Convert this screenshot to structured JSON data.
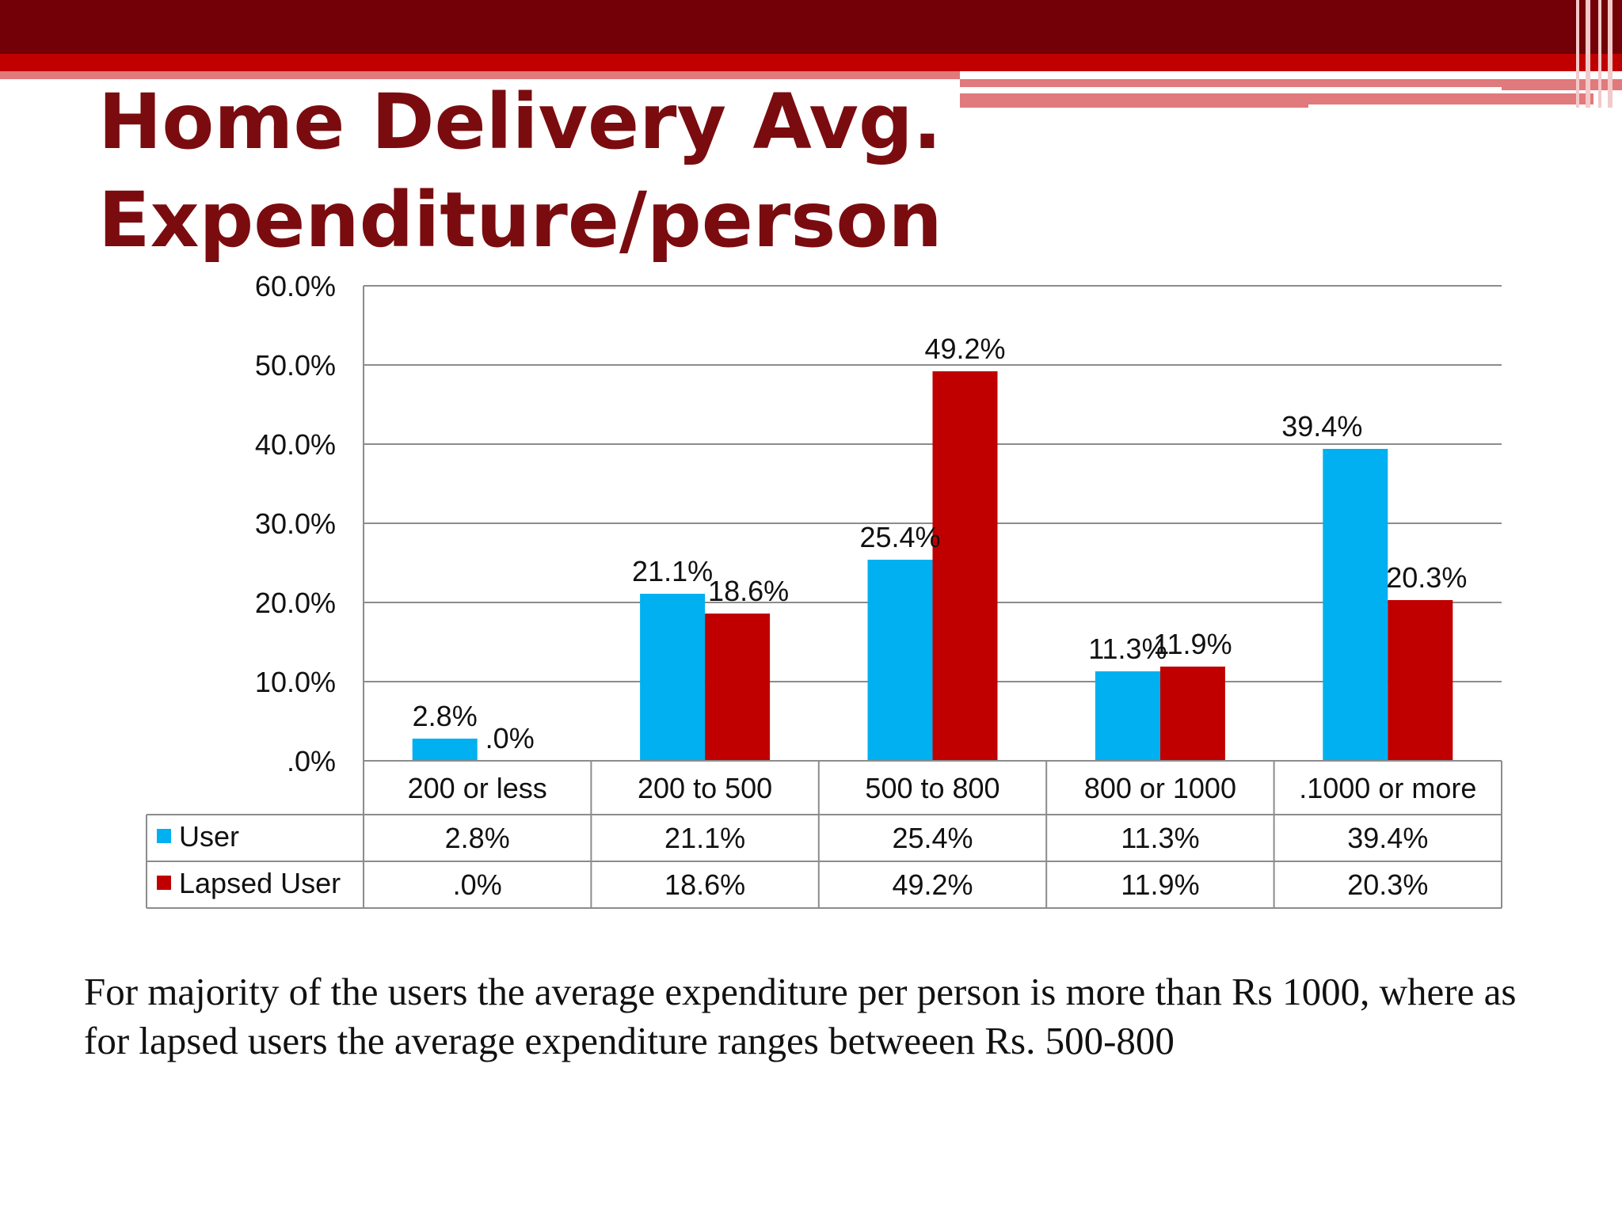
{
  "slide": {
    "title_line1": "Home Delivery Avg.",
    "title_line2": "Expenditure/person",
    "note": "For majority of the users the average expenditure per person is more than Rs 1000, where as for lapsed users the average expenditure ranges betweeen Rs. 500-800"
  },
  "colors": {
    "title": "#7a0c0f",
    "band_dark": "#720006",
    "band_red": "#c00000",
    "band_pink": "#e07a7c",
    "user": "#00b0f0",
    "lapsed": "#c00000",
    "grid": "#8c8c8c"
  },
  "chart_data": {
    "type": "bar",
    "categories": [
      "200 or less",
      "200 to 500",
      "500 to 800",
      "800 or 1000",
      ".1000 or more"
    ],
    "series": [
      {
        "name": "User",
        "values": [
          2.8,
          21.1,
          25.4,
          11.3,
          39.4
        ],
        "labels": [
          "2.8%",
          "21.1%",
          "25.4%",
          "11.3%",
          "39.4%"
        ]
      },
      {
        "name": "Lapsed User",
        "values": [
          0.0,
          18.6,
          49.2,
          11.9,
          20.3
        ],
        "labels": [
          ".0%",
          "18.6%",
          "49.2%",
          "11.9%",
          "20.3%"
        ]
      }
    ],
    "y_ticks": [
      ".0%",
      "10.0%",
      "20.0%",
      "30.0%",
      "40.0%",
      "50.0%",
      "60.0%"
    ],
    "ylim": [
      0,
      60
    ],
    "grid": true,
    "legend": "data-table",
    "data_table": true
  }
}
